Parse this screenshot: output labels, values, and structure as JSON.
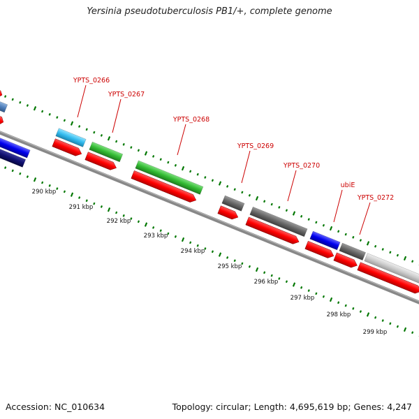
{
  "title": "Yersinia pseudotuberculosis PB1/+, complete genome",
  "footer": {
    "accession": "Accession: NC_010634",
    "summary": "Topology: circular; Length: 4,695,619 bp; Genes: 4,247"
  },
  "colors": {
    "cds": "#ff0000",
    "backbone": "#888888",
    "gc_ticks": "#007700",
    "label": "#cc0000"
  },
  "gene_labels": [
    "YPTS_0266",
    "YPTS_0267",
    "YPTS_0268",
    "YPTS_0269",
    "YPTS_0270",
    "ubiE",
    "YPTS_0272"
  ],
  "scale_labels": [
    "290 kbp",
    "291 kbp",
    "292 kbp",
    "293 kbp",
    "294 kbp",
    "295 kbp",
    "296 kbp",
    "297 kbp",
    "298 kbp",
    "299 kbp"
  ]
}
